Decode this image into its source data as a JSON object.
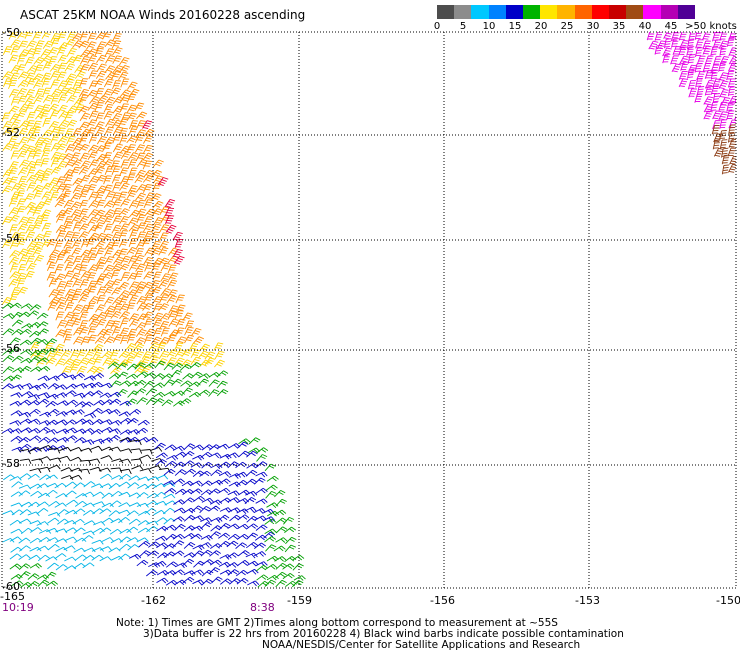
{
  "title": "ASCAT 25KM NOAA Winds 20160228 ascending",
  "legend": {
    "colors": [
      "#4d4d4d",
      "#8c8c8c",
      "#00c8ff",
      "#0082ff",
      "#0000c8",
      "#00b400",
      "#ffe600",
      "#ffb400",
      "#ff6400",
      "#ff0000",
      "#c80000",
      "#a04b14",
      "#ff00ff",
      "#b400b4",
      "#500096"
    ],
    "labels": [
      "0",
      "5",
      "10",
      "15",
      "20",
      "25",
      "30",
      "35",
      "40",
      "45",
      ">50 knots"
    ]
  },
  "axes": {
    "lon_labels": [
      "-165",
      "-162",
      "-159",
      "-156",
      "-153",
      "-150"
    ],
    "lat_labels": [
      "-50",
      "-52",
      "-54",
      "-56",
      "-58",
      "-60"
    ]
  },
  "time_labels": [
    "10:19",
    "8:38"
  ],
  "notes": [
    "Note: 1) Times are GMT 2)Times along bottom correspond to measurement at ~55S",
    "3)Data buffer is 22 hrs from 20160228 4) Black wind barbs indicate possible contamination",
    "NOAA/NESDIS/Center for Satellite Applications and Research"
  ],
  "swaths": [
    {
      "region": "west-upper",
      "color": "#ffd200",
      "speed_knots": 25
    },
    {
      "region": "west-mid",
      "color": "#ff8c00",
      "speed_knots": 30
    },
    {
      "region": "west-red",
      "color": "#e6003c",
      "speed_knots": 35
    },
    {
      "region": "east-magenta",
      "color": "#e600e6",
      "speed_knots": 45
    },
    {
      "region": "east-brown",
      "color": "#8c3c14",
      "speed_knots": 40
    },
    {
      "region": "south-green",
      "color": "#00a000",
      "speed_knots": 20
    },
    {
      "region": "south-blue",
      "color": "#0000c8",
      "speed_knots": 15
    },
    {
      "region": "south-cyan",
      "color": "#00b4e6",
      "speed_knots": 10
    },
    {
      "region": "contaminated",
      "color": "#000000",
      "speed_knots": 0
    }
  ]
}
